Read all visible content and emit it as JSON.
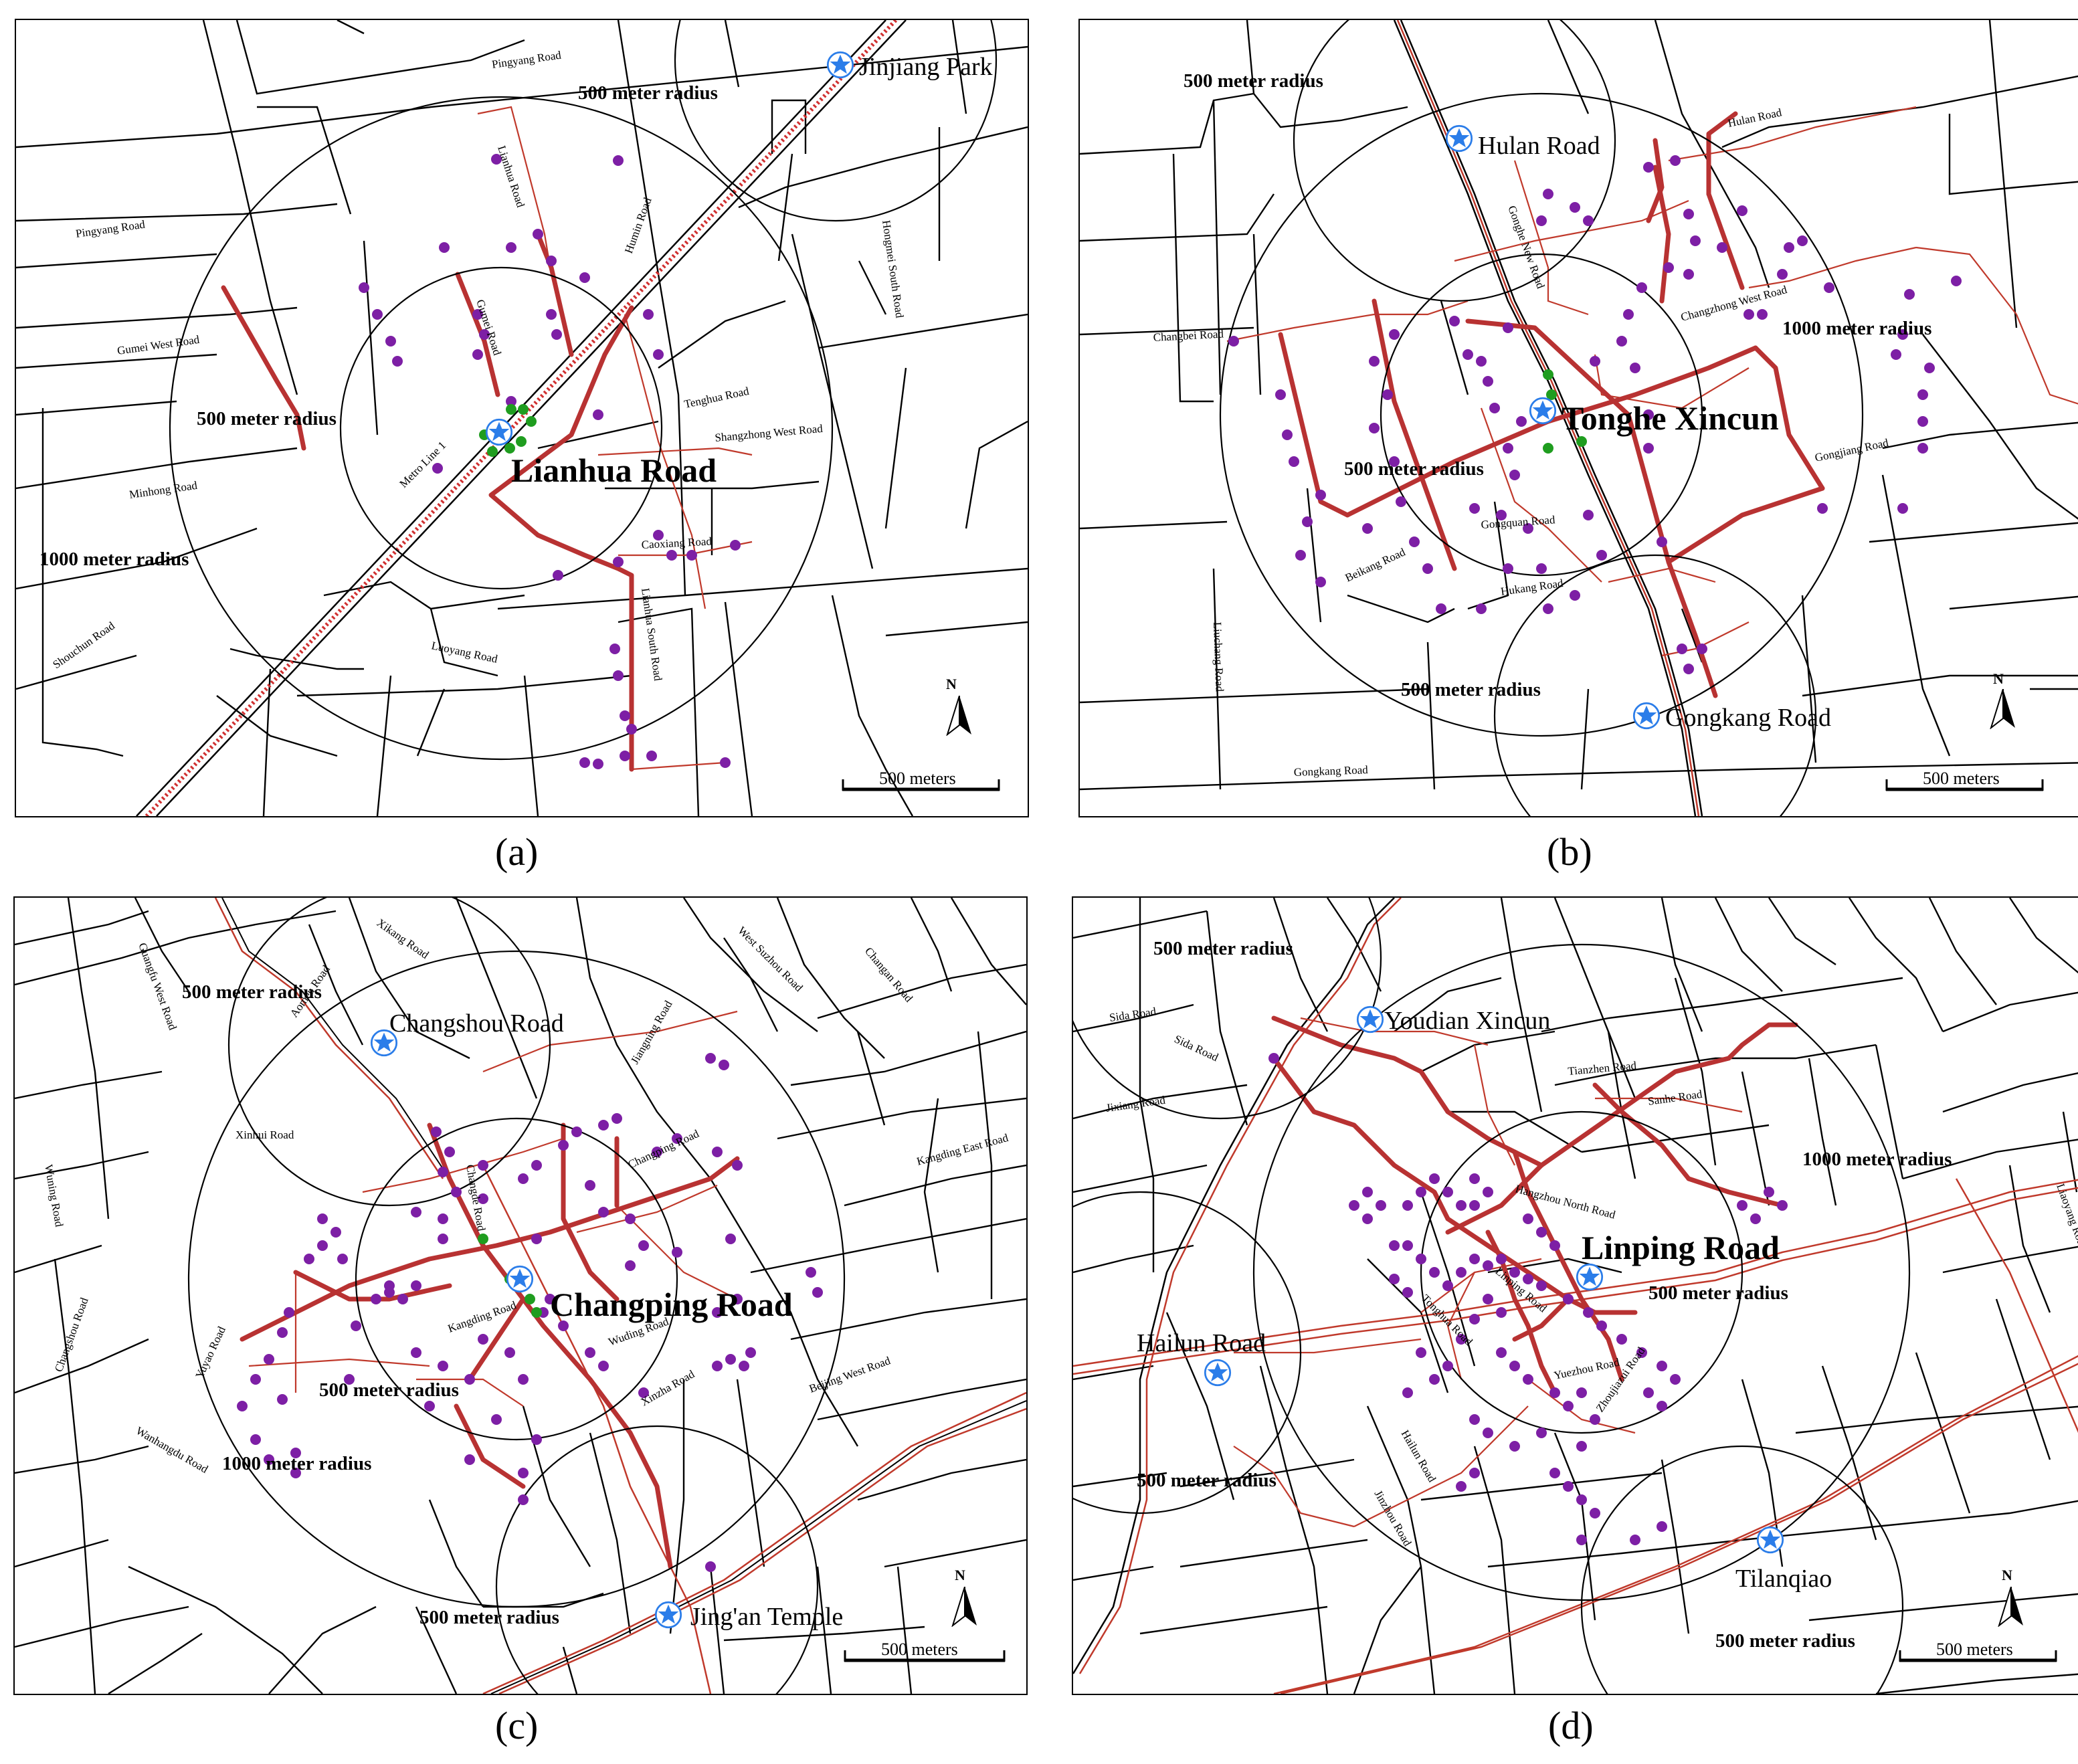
{
  "colors": {
    "station": "#2b7de9",
    "poi": "#7d1fa5",
    "entrance": "#1f9d1f",
    "route": "#b83232",
    "road": "#000000"
  },
  "panels": {
    "a": {
      "caption": "(a)",
      "main_station": "Lianhua Road",
      "stations": [
        "Jinjiang Park"
      ],
      "radius_labels": [
        "500 meter radius",
        "500 meter radius",
        "1000 meter radius"
      ],
      "roads": [
        "Pingyang Road",
        "Pingyang Road",
        "Lianhua Road",
        "Humin Road",
        "Gumei West Road",
        "Gumei Road",
        "Metro Line 1",
        "Tenghua Road",
        "Shangzhong West Road",
        "Minhong Road",
        "Caoxiang Road",
        "Shouchun Road",
        "Luoyang Road",
        "Lianhua South Road",
        "Hongmei South Road"
      ],
      "scale_label": "500 meters",
      "north": "N"
    },
    "b": {
      "caption": "(b)",
      "main_station": "Tonghe Xincun",
      "stations": [
        "Hulan Road",
        "Gongkang Road"
      ],
      "radius_labels": [
        "500 meter radius",
        "1000 meter radius",
        "500 meter radius",
        "500 meter radius"
      ],
      "roads": [
        "Hulan Road",
        "Gonghe New Road",
        "Changbei Road",
        "Changzhong West Road",
        "Gongjiang Road",
        "Gongquan Road",
        "Beikang Road",
        "Hukang Road",
        "Liuchang Road",
        "Gongkang Road"
      ],
      "scale_label": "500 meters",
      "north": "N"
    },
    "c": {
      "caption": "(c)",
      "main_station": "Changping Road",
      "stations": [
        "Changshou Road",
        "Jing'an Temple"
      ],
      "radius_labels": [
        "500 meter radius",
        "500 meter radius",
        "1000 meter radius",
        "500 meter radius"
      ],
      "roads": [
        "Xikang Road",
        "Guangfu West Road",
        "Aomen Road",
        "Jiangning Road",
        "West Suzhou Road",
        "Changan Road",
        "Xinhui Road",
        "Changping Road",
        "Kangding East Road",
        "Wuning Road",
        "Changde Road",
        "Changshou Road",
        "Yuyao Road",
        "Kangding Road",
        "Wuding Road",
        "Xinzha Road",
        "Beijing West Road",
        "Wanhangdu Road"
      ],
      "scale_label": "500 meters",
      "north": "N"
    },
    "d": {
      "caption": "(d)",
      "main_station": "Linping Road",
      "stations": [
        "Youdian Xincun",
        "Hailun Road",
        "Tilanqiao"
      ],
      "radius_labels": [
        "500 meter radius",
        "1000 meter radius",
        "500 meter radius",
        "500 meter radius",
        "500 meter radius"
      ],
      "roads": [
        "Sida Road",
        "Sida Road",
        "Tianzhen Road",
        "Sanhe Road",
        "Jixiang Road",
        "Hangzhou North Road",
        "Liaoyang Road",
        "Linping Road",
        "Yuezhou Road",
        "Tonghua Road",
        "Zhoujiazui Road",
        "Hailun Road",
        "Jinzhou Road"
      ],
      "scale_label": "500 meters",
      "north": "N"
    }
  }
}
